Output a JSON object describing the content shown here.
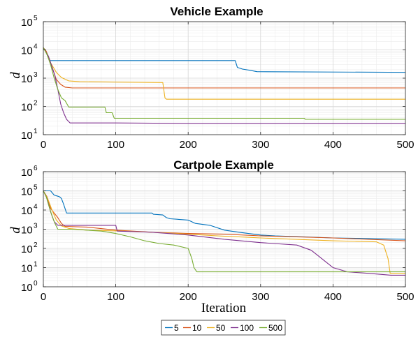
{
  "chart_data": [
    {
      "type": "line",
      "title": "Vehicle Example",
      "xlabel": "",
      "ylabel": "d",
      "yscale": "log",
      "xlim": [
        0,
        500
      ],
      "ylim": [
        10,
        100000
      ],
      "xticks": [
        0,
        100,
        200,
        300,
        400,
        500
      ],
      "yticks": [
        10,
        100,
        1000,
        10000,
        100000
      ],
      "ytick_labels": [
        {
          "base": "10",
          "exp": "1"
        },
        {
          "base": "10",
          "exp": "2"
        },
        {
          "base": "10",
          "exp": "3"
        },
        {
          "base": "10",
          "exp": "4"
        },
        {
          "base": "10",
          "exp": "5"
        }
      ],
      "grid": true,
      "series": [
        {
          "name": "5",
          "color": "#0072BD",
          "points": [
            [
              0,
              12000
            ],
            [
              3,
              9000
            ],
            [
              6,
              6000
            ],
            [
              9,
              4200
            ],
            [
              265,
              4200
            ],
            [
              268,
              2400
            ],
            [
              275,
              2100
            ],
            [
              285,
              1900
            ],
            [
              295,
              1700
            ],
            [
              500,
              1600
            ]
          ]
        },
        {
          "name": "10",
          "color": "#D95319",
          "points": [
            [
              0,
              12000
            ],
            [
              4,
              9000
            ],
            [
              8,
              5000
            ],
            [
              12,
              2500
            ],
            [
              18,
              900
            ],
            [
              24,
              600
            ],
            [
              30,
              480
            ],
            [
              40,
              450
            ],
            [
              500,
              450
            ]
          ]
        },
        {
          "name": "50",
          "color": "#EDB120",
          "points": [
            [
              0,
              12000
            ],
            [
              4,
              8000
            ],
            [
              10,
              3500
            ],
            [
              18,
              1600
            ],
            [
              25,
              1050
            ],
            [
              35,
              800
            ],
            [
              50,
              750
            ],
            [
              165,
              700
            ],
            [
              168,
              200
            ],
            [
              170,
              180
            ],
            [
              500,
              180
            ]
          ]
        },
        {
          "name": "100",
          "color": "#7E2F8E",
          "points": [
            [
              0,
              12000
            ],
            [
              3,
              9000
            ],
            [
              7,
              6000
            ],
            [
              11,
              3000
            ],
            [
              16,
              1200
            ],
            [
              20,
              400
            ],
            [
              24,
              120
            ],
            [
              28,
              60
            ],
            [
              32,
              35
            ],
            [
              37,
              26
            ],
            [
              100,
              26
            ],
            [
              200,
              25
            ],
            [
              500,
              25
            ]
          ]
        },
        {
          "name": "500",
          "color": "#77AC30",
          "points": [
            [
              0,
              12000
            ],
            [
              5,
              7000
            ],
            [
              10,
              3000
            ],
            [
              15,
              1000
            ],
            [
              20,
              400
            ],
            [
              25,
              200
            ],
            [
              30,
              160
            ],
            [
              35,
              95
            ],
            [
              85,
              95
            ],
            [
              87,
              60
            ],
            [
              95,
              60
            ],
            [
              98,
              38
            ],
            [
              360,
              38
            ],
            [
              362,
              35
            ],
            [
              500,
              35
            ]
          ]
        }
      ]
    },
    {
      "type": "line",
      "title": "Cartpole Example",
      "xlabel": "Iteration",
      "ylabel": "d",
      "yscale": "log",
      "xlim": [
        0,
        500
      ],
      "ylim": [
        1,
        1000000
      ],
      "xticks": [
        0,
        100,
        200,
        300,
        400,
        500
      ],
      "yticks": [
        1,
        10,
        100,
        1000,
        10000,
        100000,
        1000000
      ],
      "ytick_labels": [
        {
          "base": "10",
          "exp": "0"
        },
        {
          "base": "10",
          "exp": "1"
        },
        {
          "base": "10",
          "exp": "2"
        },
        {
          "base": "10",
          "exp": "3"
        },
        {
          "base": "10",
          "exp": "4"
        },
        {
          "base": "10",
          "exp": "5"
        },
        {
          "base": "10",
          "exp": "6"
        }
      ],
      "grid": true,
      "series": [
        {
          "name": "5",
          "color": "#0072BD",
          "points": [
            [
              0,
              100000
            ],
            [
              10,
              100000
            ],
            [
              15,
              60000
            ],
            [
              22,
              50000
            ],
            [
              25,
              40000
            ],
            [
              28,
              20000
            ],
            [
              32,
              7000
            ],
            [
              150,
              7000
            ],
            [
              152,
              6000
            ],
            [
              165,
              5500
            ],
            [
              170,
              4000
            ],
            [
              175,
              3500
            ],
            [
              200,
              3000
            ],
            [
              210,
              2000
            ],
            [
              230,
              1600
            ],
            [
              250,
              900
            ],
            [
              270,
              700
            ],
            [
              300,
              500
            ],
            [
              320,
              450
            ],
            [
              360,
              400
            ],
            [
              400,
              350
            ],
            [
              500,
              300
            ]
          ]
        },
        {
          "name": "10",
          "color": "#D95319",
          "points": [
            [
              0,
              100000
            ],
            [
              5,
              50000
            ],
            [
              10,
              12000
            ],
            [
              15,
              7000
            ],
            [
              20,
              4000
            ],
            [
              25,
              2000
            ],
            [
              30,
              1400
            ],
            [
              60,
              1300
            ],
            [
              100,
              900
            ],
            [
              150,
              700
            ],
            [
              200,
              600
            ],
            [
              250,
              550
            ],
            [
              300,
              450
            ],
            [
              400,
              350
            ],
            [
              500,
              250
            ]
          ]
        },
        {
          "name": "50",
          "color": "#EDB120",
          "points": [
            [
              0,
              100000
            ],
            [
              6,
              40000
            ],
            [
              12,
              10000
            ],
            [
              18,
              3000
            ],
            [
              25,
              1500
            ],
            [
              35,
              1100
            ],
            [
              60,
              900
            ],
            [
              110,
              800
            ],
            [
              150,
              700
            ],
            [
              200,
              550
            ],
            [
              240,
              450
            ],
            [
              270,
              400
            ],
            [
              300,
              350
            ],
            [
              400,
              250
            ],
            [
              460,
              220
            ],
            [
              470,
              150
            ],
            [
              476,
              30
            ],
            [
              479,
              5
            ],
            [
              500,
              5
            ]
          ]
        },
        {
          "name": "100",
          "color": "#7E2F8E",
          "points": [
            [
              0,
              100000
            ],
            [
              5,
              40000
            ],
            [
              10,
              8000
            ],
            [
              15,
              2500
            ],
            [
              20,
              1600
            ],
            [
              100,
              1600
            ],
            [
              102,
              800
            ],
            [
              150,
              700
            ],
            [
              200,
              500
            ],
            [
              250,
              300
            ],
            [
              300,
              200
            ],
            [
              350,
              150
            ],
            [
              370,
              80
            ],
            [
              380,
              40
            ],
            [
              390,
              20
            ],
            [
              400,
              10
            ],
            [
              420,
              6
            ],
            [
              450,
              5
            ],
            [
              480,
              4
            ],
            [
              500,
              4
            ]
          ]
        },
        {
          "name": "500",
          "color": "#77AC30",
          "points": [
            [
              0,
              100000
            ],
            [
              4,
              50000
            ],
            [
              8,
              15000
            ],
            [
              12,
              5000
            ],
            [
              16,
              2000
            ],
            [
              20,
              1000
            ],
            [
              40,
              1000
            ],
            [
              80,
              800
            ],
            [
              100,
              600
            ],
            [
              120,
              400
            ],
            [
              140,
              250
            ],
            [
              160,
              180
            ],
            [
              180,
              150
            ],
            [
              200,
              100
            ],
            [
              205,
              30
            ],
            [
              208,
              10
            ],
            [
              212,
              6
            ],
            [
              500,
              6
            ]
          ]
        }
      ]
    }
  ],
  "legend": {
    "placement": "bottom-center",
    "orientation": "horizontal",
    "entries": [
      {
        "label": "5",
        "color": "#0072BD"
      },
      {
        "label": "10",
        "color": "#D95319"
      },
      {
        "label": "50",
        "color": "#EDB120"
      },
      {
        "label": "100",
        "color": "#7E2F8E"
      },
      {
        "label": "500",
        "color": "#77AC30"
      }
    ]
  }
}
